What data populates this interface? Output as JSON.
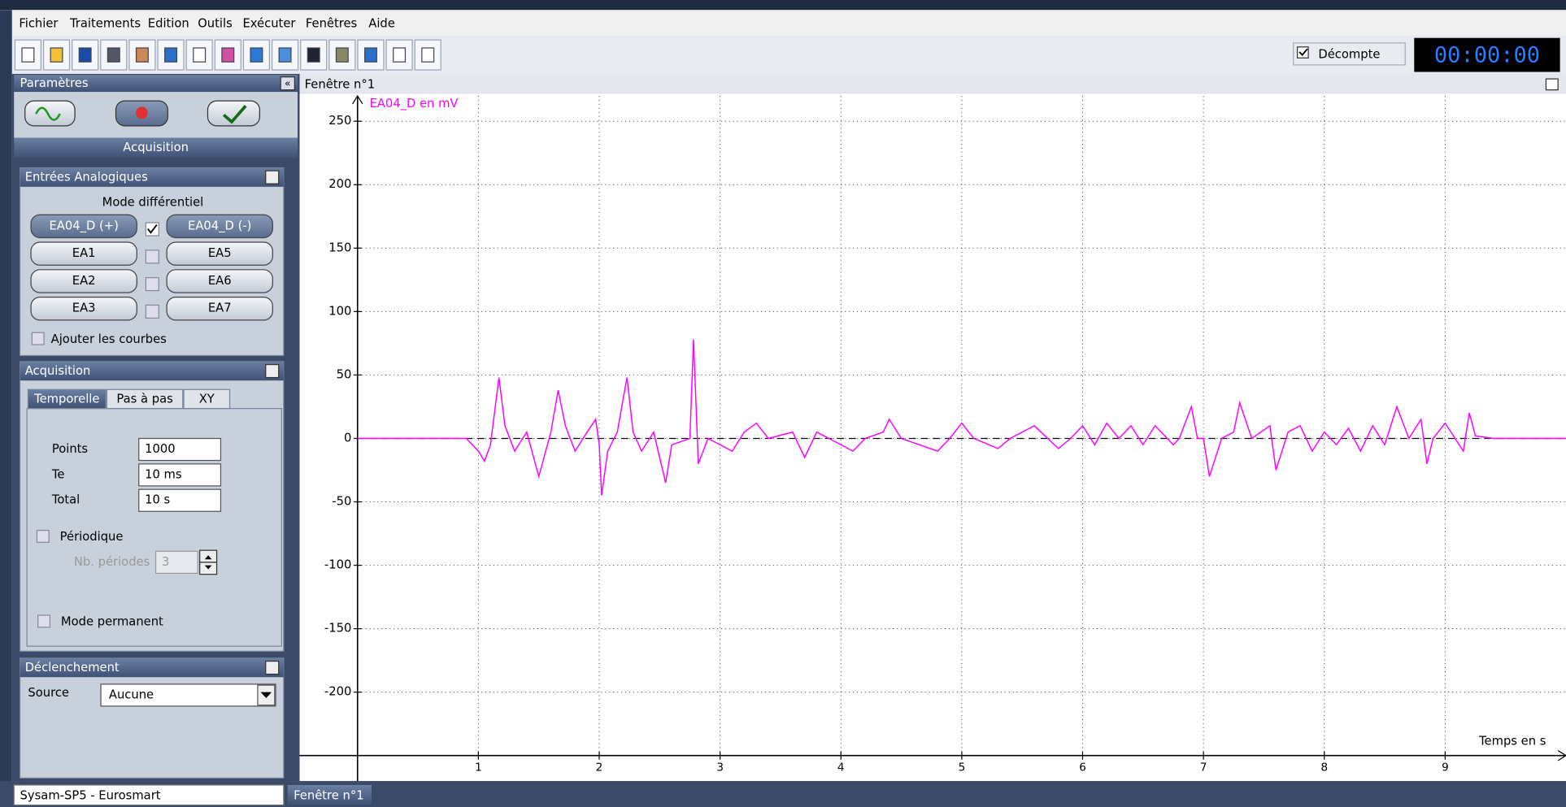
{
  "menu": [
    "Fichier",
    "Traitements",
    "Edition",
    "Outils",
    "Exécuter",
    "Fenêtres",
    "Aide"
  ],
  "toolbar": {
    "countdown": "Décompte",
    "timer": "00:00:00"
  },
  "sidebar": {
    "title": "Paramètres",
    "acquisition_tab": "Acquisition",
    "analog": {
      "title": "Entrées Analogiques",
      "mode": "Mode différentiel",
      "inputs": [
        [
          "EA04_D (+)",
          "EA04_D (-)"
        ],
        [
          "EA1",
          "EA5"
        ],
        [
          "EA2",
          "EA6"
        ],
        [
          "EA3",
          "EA7"
        ]
      ],
      "add_curves": "Ajouter les courbes"
    },
    "acquisition": {
      "title": "Acquisition",
      "tabs": [
        "Temporelle",
        "Pas à pas",
        "XY"
      ],
      "fields": [
        {
          "label": "Points",
          "value": "1000"
        },
        {
          "label": "Te",
          "value": "10 ms"
        },
        {
          "label": "Total",
          "value": "10 s"
        }
      ],
      "periodic": "Périodique",
      "periods_label": "Nb. périodes",
      "periods": "3",
      "permanent": "Mode permanent"
    },
    "trigger": {
      "title": "Déclenchement",
      "source_label": "Source",
      "source": "Aucune"
    }
  },
  "window": {
    "title": "Fenêtre n°1"
  },
  "chart_data": {
    "type": "line",
    "y_label": "EA04_D en mV",
    "x_label": "Temps en s",
    "xlim": [
      0,
      10
    ],
    "ylim": [
      -250,
      270
    ],
    "xticks": [
      1,
      2,
      3,
      4,
      5,
      6,
      7,
      8,
      9
    ],
    "yticks": [
      -200,
      -150,
      -100,
      -50,
      0,
      50,
      100,
      150,
      200,
      250
    ],
    "grid": true,
    "series": [
      {
        "name": "EA04_D",
        "color": "#ff00ff",
        "x": [
          0,
          0.5,
          0.9,
          1.0,
          1.05,
          1.1,
          1.17,
          1.22,
          1.3,
          1.4,
          1.5,
          1.6,
          1.66,
          1.72,
          1.8,
          1.9,
          1.97,
          2.0,
          2.02,
          2.07,
          2.15,
          2.23,
          2.28,
          2.35,
          2.45,
          2.55,
          2.6,
          2.75,
          2.78,
          2.82,
          2.9,
          3.0,
          3.1,
          3.2,
          3.3,
          3.4,
          3.6,
          3.7,
          3.8,
          3.9,
          4.0,
          4.1,
          4.2,
          4.35,
          4.4,
          4.5,
          4.8,
          4.9,
          5.0,
          5.1,
          5.3,
          5.4,
          5.6,
          5.8,
          5.9,
          6.0,
          6.1,
          6.2,
          6.3,
          6.4,
          6.5,
          6.6,
          6.75,
          6.8,
          6.9,
          6.95,
          7.0,
          7.05,
          7.15,
          7.25,
          7.3,
          7.4,
          7.55,
          7.6,
          7.7,
          7.8,
          7.9,
          8.0,
          8.1,
          8.2,
          8.3,
          8.4,
          8.5,
          8.6,
          8.7,
          8.8,
          8.85,
          8.9,
          9.0,
          9.15,
          9.2,
          9.25,
          9.4,
          10
        ],
        "values": [
          0,
          0,
          0,
          -10,
          -18,
          -5,
          48,
          10,
          -10,
          5,
          -30,
          5,
          38,
          10,
          -10,
          5,
          15,
          -5,
          -45,
          -10,
          5,
          48,
          5,
          -10,
          5,
          -35,
          -5,
          0,
          78,
          -20,
          0,
          -5,
          -10,
          5,
          12,
          0,
          5,
          -15,
          5,
          0,
          -5,
          -10,
          0,
          5,
          15,
          0,
          -10,
          0,
          12,
          0,
          -8,
          0,
          10,
          -8,
          0,
          10,
          -5,
          12,
          0,
          10,
          -5,
          10,
          -5,
          0,
          25,
          0,
          0,
          -30,
          0,
          5,
          28,
          0,
          10,
          -25,
          5,
          10,
          -10,
          5,
          -5,
          8,
          -10,
          10,
          -5,
          25,
          0,
          15,
          -20,
          0,
          12,
          -10,
          20,
          2,
          0,
          0
        ]
      }
    ]
  },
  "status": {
    "device": "Sysam-SP5 - Eurosmart",
    "tab": "Fenêtre n°1"
  }
}
